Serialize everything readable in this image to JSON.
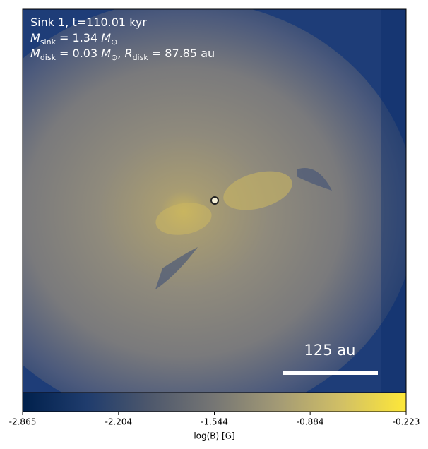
{
  "chart_data": {
    "type": "image",
    "annotations": [
      [
        "Sink 1, t=110.01 kyr"
      ],
      [
        "M",
        "sink",
        " = 1.34 ",
        "M",
        "⊙"
      ],
      [
        "M",
        "disk",
        " = 0.03 ",
        "M",
        "⊙",
        ", ",
        "R",
        "disk",
        " = 87.85 au"
      ]
    ],
    "scale_bar": "125 au",
    "colorbar": {
      "label": "log(B) [G]",
      "clim": [
        -2.865,
        -0.223
      ],
      "ticks": [
        -2.865,
        -2.204,
        -1.544,
        -0.884,
        -0.223
      ],
      "colors": [
        "#00204c",
        "#1f3c6d",
        "#4e586c",
        "#767674",
        "#a39a75",
        "#d2c065",
        "#fee838"
      ]
    }
  }
}
